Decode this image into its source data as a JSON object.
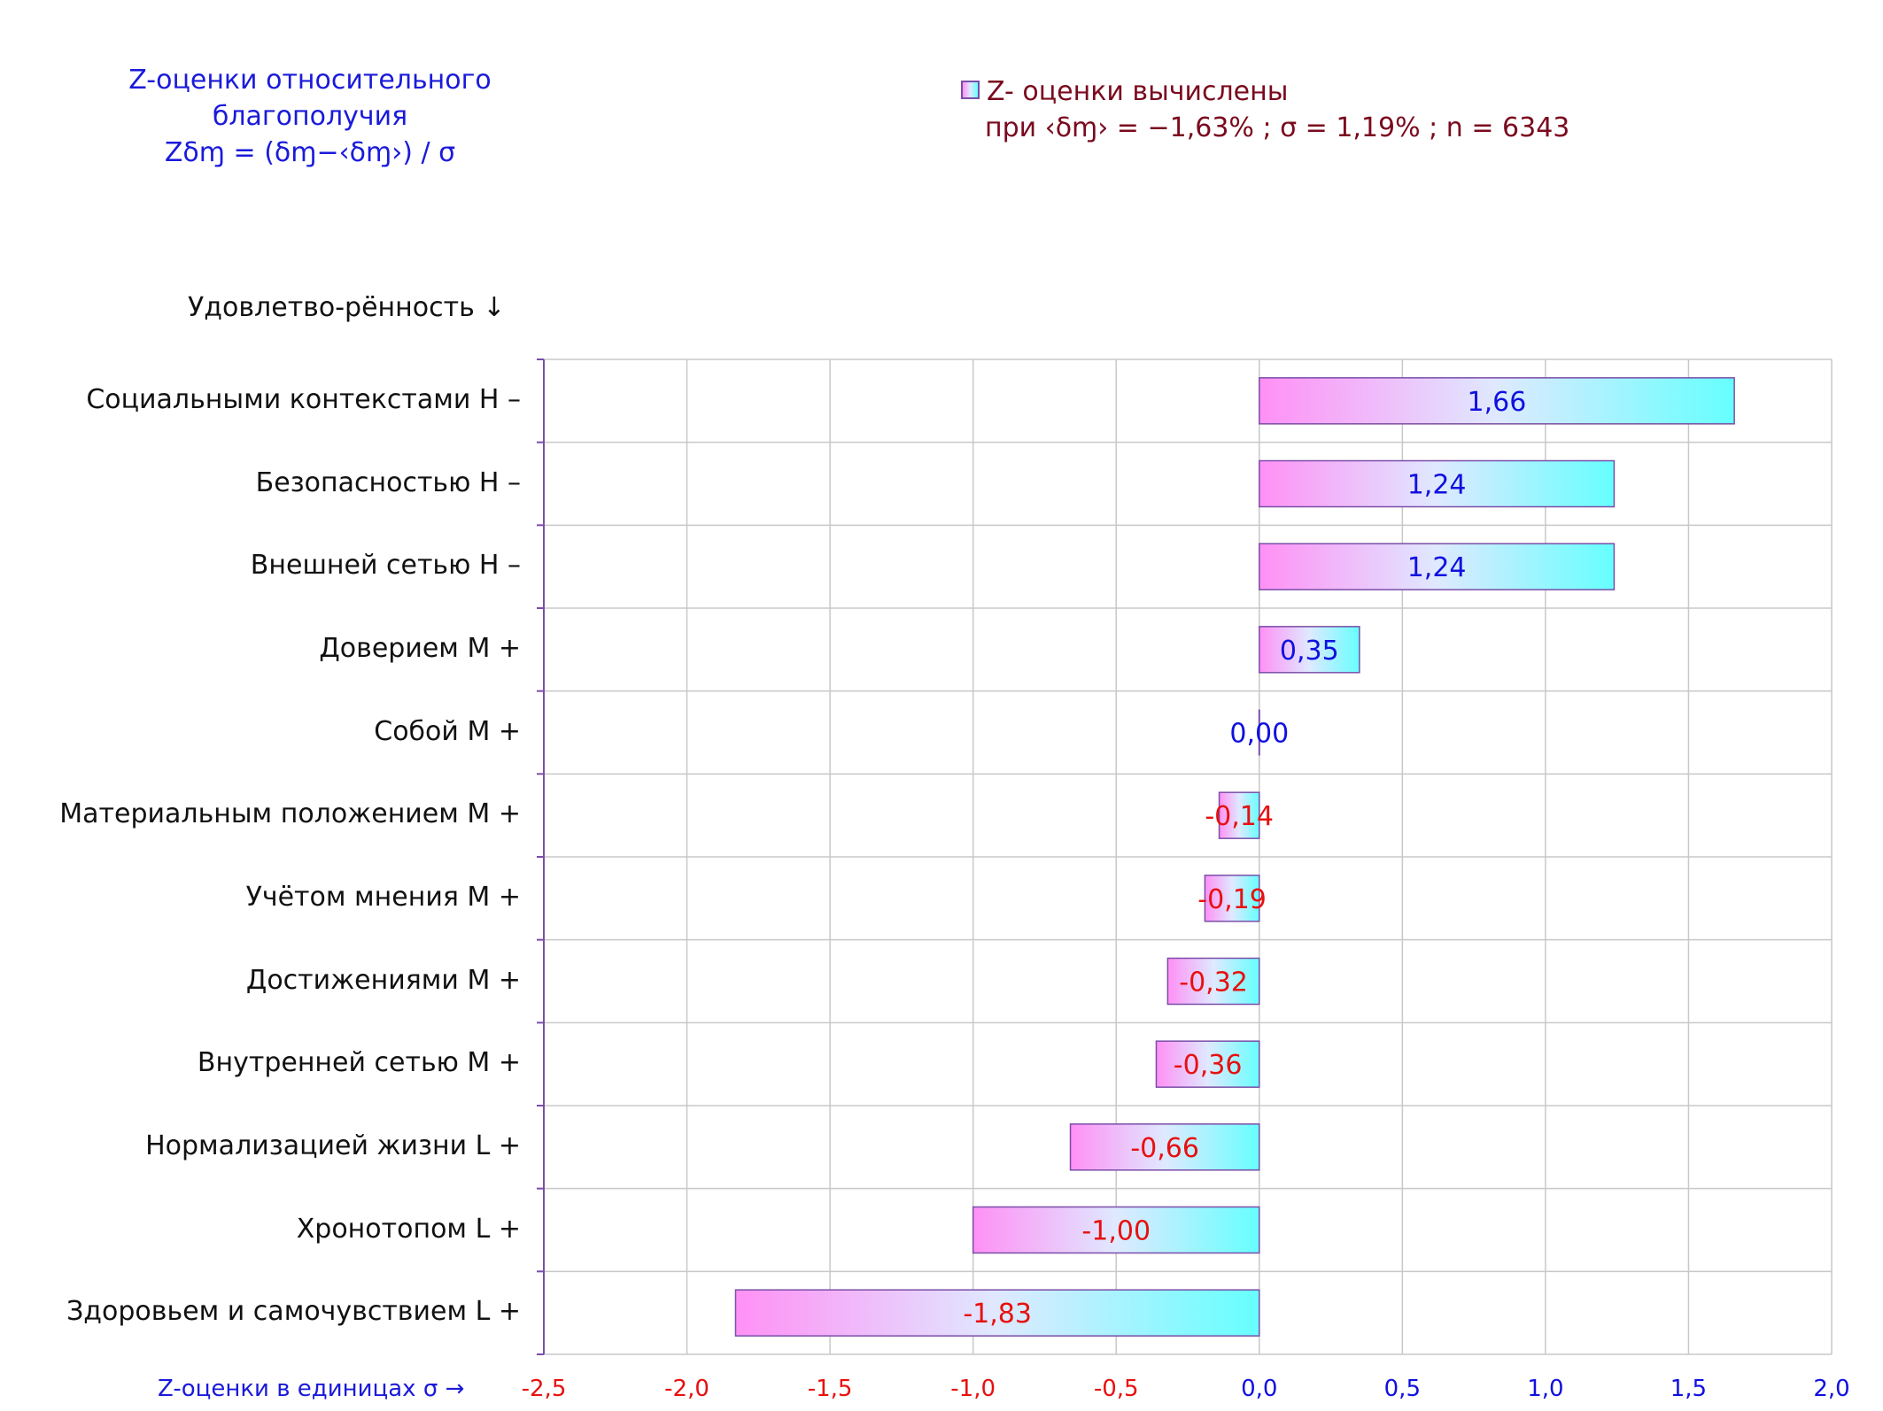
{
  "title": {
    "line1": "Z-оценки  относительного",
    "line2": "благополучия",
    "formula": "Zδɱ = (δɱ−‹δɱ›)  / σ"
  },
  "legend": {
    "line1": "Z- оценки вычислены",
    "line2": "при ‹δɱ› = −1,63% ; σ = 1,19% ; n = 6343"
  },
  "chart_data": {
    "type": "bar",
    "orientation": "horizontal",
    "ylabel": "Удовлетво-рённость ↓",
    "xlabel": "Z-оценки в единицах σ →",
    "xlim": [
      -2.5,
      2.0
    ],
    "xticks": [
      "-2,5",
      "-2,0",
      "-1,5",
      "-1,0",
      "-0,5",
      "0,0",
      "0,5",
      "1,0",
      "1,5",
      "2,0"
    ],
    "grid": true,
    "categories": [
      "Социальными контекстами  Н –",
      "Безопасностью  Н –",
      "Внешней сетью  Н –",
      "Доверием  М +",
      "Собой  М +",
      "Материальным положением  М +",
      "Учётом мнения  М +",
      "Достижениями  М +",
      "Внутренней сетью  М +",
      "Нормализацией жизни  L +",
      "Хронотопом  L +",
      "Здоровьем и самочувствием  L +"
    ],
    "values": [
      1.66,
      1.24,
      1.24,
      0.35,
      0.0,
      -0.14,
      -0.19,
      -0.32,
      -0.36,
      -0.66,
      -1.0,
      -1.83
    ],
    "value_labels": [
      "1,66",
      "1,24",
      "1,24",
      "0,35",
      "0,00",
      "-0,14",
      "-0,19",
      "-0,32",
      "-0,36",
      "-0,66",
      "-1,00",
      "-1,83"
    ],
    "colors": {
      "positive_label": "#1010e0",
      "negative_label": "#e81010",
      "bar_left": "#ff90f5",
      "bar_right": "#66ffff",
      "bar_border": "#7a4ea8",
      "grid": "#c8c8c8",
      "axis": "#7a4ea8",
      "negative_tick": "#e81010",
      "positive_tick": "#1010e0"
    }
  }
}
